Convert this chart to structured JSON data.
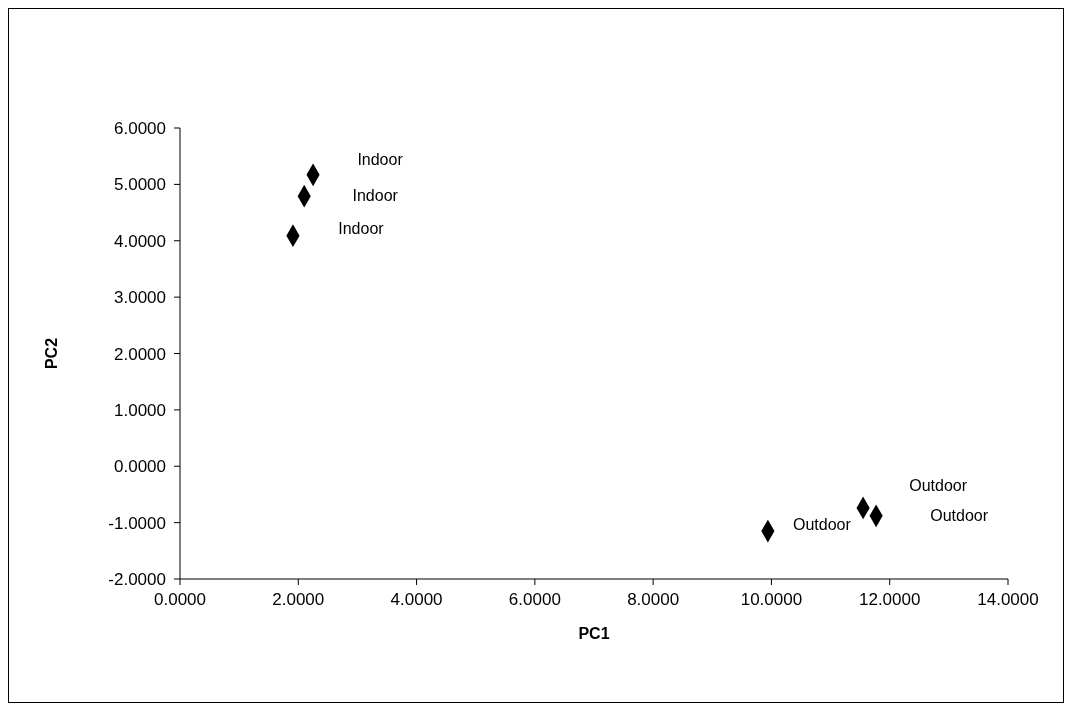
{
  "chart_data": {
    "type": "scatter",
    "xlabel": "PC1",
    "ylabel": "PC2",
    "x": [
      2.25,
      2.1,
      1.91,
      9.94,
      11.55,
      11.77
    ],
    "values": [
      5.17,
      4.79,
      4.09,
      -1.15,
      -0.74,
      -0.88
    ],
    "color": "#000000",
    "marker": "diamond",
    "grid": false,
    "legend": false,
    "xlim": [
      0,
      14
    ],
    "ylim": [
      -2,
      6
    ],
    "xticks": [
      {
        "value": 0,
        "label": "0.0000"
      },
      {
        "value": 2,
        "label": "2.0000"
      },
      {
        "value": 4,
        "label": "4.0000"
      },
      {
        "value": 6,
        "label": "6.0000"
      },
      {
        "value": 8,
        "label": "8.0000"
      },
      {
        "value": 10,
        "label": "10.0000"
      },
      {
        "value": 12,
        "label": "12.0000"
      },
      {
        "value": 14,
        "label": "14.0000"
      }
    ],
    "yticks": [
      {
        "value": -2,
        "label": "-2.0000"
      },
      {
        "value": -1,
        "label": "-1.0000"
      },
      {
        "value": 0,
        "label": "0.0000"
      },
      {
        "value": 1,
        "label": "1.0000"
      },
      {
        "value": 2,
        "label": "2.0000"
      },
      {
        "value": 3,
        "label": "3.0000"
      },
      {
        "value": 4,
        "label": "4.0000"
      },
      {
        "value": 5,
        "label": "5.0000"
      },
      {
        "value": 6,
        "label": "6.0000"
      }
    ],
    "annotations": [
      "Indoor",
      "Indoor",
      "Indoor",
      "Outdoor",
      "Outdoor",
      "Outdoor"
    ]
  }
}
